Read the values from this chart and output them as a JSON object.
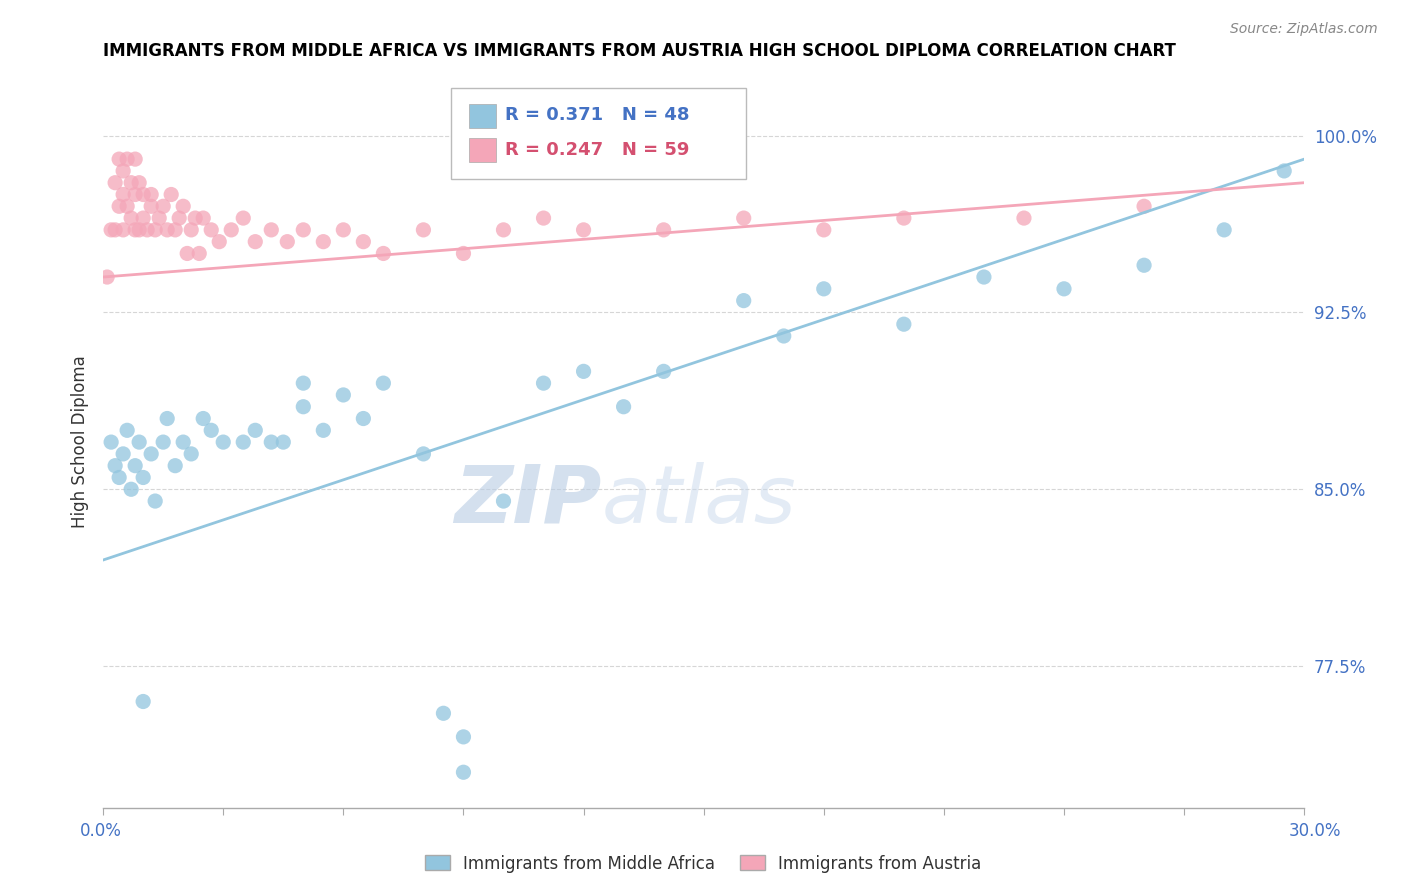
{
  "title": "IMMIGRANTS FROM MIDDLE AFRICA VS IMMIGRANTS FROM AUSTRIA HIGH SCHOOL DIPLOMA CORRELATION CHART",
  "source": "Source: ZipAtlas.com",
  "ylabel": "High School Diploma",
  "x_min": 0.0,
  "x_max": 0.3,
  "y_min": 0.715,
  "y_max": 1.025,
  "blue_R": 0.371,
  "blue_N": 48,
  "pink_R": 0.247,
  "pink_N": 59,
  "blue_color": "#92c5de",
  "pink_color": "#f4a6b8",
  "legend_blue_label": "Immigrants from Middle Africa",
  "legend_pink_label": "Immigrants from Austria",
  "blue_scatter_x": [
    0.002,
    0.003,
    0.004,
    0.005,
    0.006,
    0.007,
    0.008,
    0.009,
    0.01,
    0.012,
    0.013,
    0.015,
    0.016,
    0.018,
    0.02,
    0.022,
    0.025,
    0.027,
    0.03,
    0.035,
    0.038,
    0.042,
    0.045,
    0.05,
    0.055,
    0.06,
    0.065,
    0.07,
    0.08,
    0.085,
    0.09,
    0.1,
    0.11,
    0.12,
    0.13,
    0.14,
    0.16,
    0.17,
    0.18,
    0.2,
    0.22,
    0.24,
    0.26,
    0.28,
    0.295,
    0.05,
    0.01,
    0.09
  ],
  "blue_scatter_y": [
    0.87,
    0.86,
    0.855,
    0.865,
    0.875,
    0.85,
    0.86,
    0.87,
    0.855,
    0.865,
    0.845,
    0.87,
    0.88,
    0.86,
    0.87,
    0.865,
    0.88,
    0.875,
    0.87,
    0.87,
    0.875,
    0.87,
    0.87,
    0.885,
    0.875,
    0.89,
    0.88,
    0.895,
    0.865,
    0.755,
    0.745,
    0.845,
    0.895,
    0.9,
    0.885,
    0.9,
    0.93,
    0.915,
    0.935,
    0.92,
    0.94,
    0.935,
    0.945,
    0.96,
    0.985,
    0.895,
    0.76,
    0.73
  ],
  "pink_scatter_x": [
    0.001,
    0.002,
    0.003,
    0.003,
    0.004,
    0.004,
    0.005,
    0.005,
    0.005,
    0.006,
    0.006,
    0.007,
    0.007,
    0.008,
    0.008,
    0.008,
    0.009,
    0.009,
    0.01,
    0.01,
    0.011,
    0.012,
    0.012,
    0.013,
    0.014,
    0.015,
    0.016,
    0.017,
    0.018,
    0.019,
    0.02,
    0.021,
    0.022,
    0.023,
    0.024,
    0.025,
    0.027,
    0.029,
    0.032,
    0.035,
    0.038,
    0.042,
    0.046,
    0.05,
    0.055,
    0.06,
    0.065,
    0.07,
    0.08,
    0.09,
    0.1,
    0.11,
    0.12,
    0.14,
    0.16,
    0.18,
    0.2,
    0.23,
    0.26
  ],
  "pink_scatter_y": [
    0.94,
    0.96,
    0.98,
    0.96,
    0.97,
    0.99,
    0.975,
    0.985,
    0.96,
    0.97,
    0.99,
    0.965,
    0.98,
    0.96,
    0.975,
    0.99,
    0.96,
    0.98,
    0.965,
    0.975,
    0.96,
    0.97,
    0.975,
    0.96,
    0.965,
    0.97,
    0.96,
    0.975,
    0.96,
    0.965,
    0.97,
    0.95,
    0.96,
    0.965,
    0.95,
    0.965,
    0.96,
    0.955,
    0.96,
    0.965,
    0.955,
    0.96,
    0.955,
    0.96,
    0.955,
    0.96,
    0.955,
    0.95,
    0.96,
    0.95,
    0.96,
    0.965,
    0.96,
    0.96,
    0.965,
    0.96,
    0.965,
    0.965,
    0.97
  ],
  "blue_trend_x0": 0.0,
  "blue_trend_y0": 0.82,
  "blue_trend_x1": 0.3,
  "blue_trend_y1": 0.99,
  "pink_trend_x0": 0.0,
  "pink_trend_y0": 0.94,
  "pink_trend_x1": 0.3,
  "pink_trend_y1": 0.98,
  "watermark_zip": "ZIP",
  "watermark_atlas": "atlas",
  "background_color": "#ffffff",
  "grid_color": "#cccccc",
  "tick_color": "#4472c4",
  "title_color": "#000000",
  "ytick_vals": [
    0.775,
    0.85,
    0.925,
    1.0
  ],
  "ytick_labels": [
    "77.5%",
    "85.0%",
    "92.5%",
    "100.0%"
  ]
}
